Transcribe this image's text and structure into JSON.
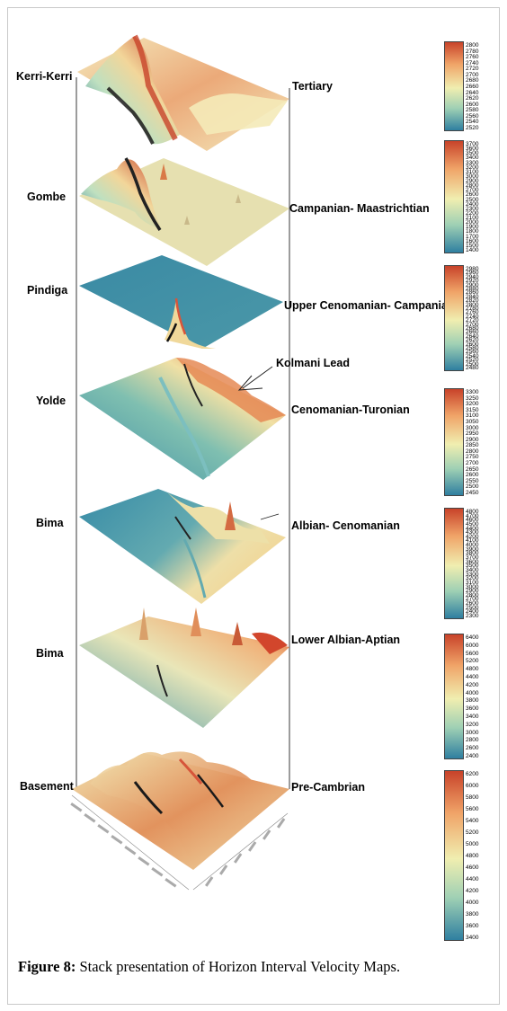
{
  "caption": {
    "label": "Figure 8:",
    "text": " Stack presentation of Horizon Interval Velocity Maps."
  },
  "annotation": {
    "text": "Kolmani Lead"
  },
  "colors": {
    "low": "#2f7fa0",
    "mid": "#f0eeb0",
    "high": "#c8432a"
  },
  "layers": [
    {
      "formation": "Kerri-Kerri",
      "age": "Tertiary",
      "scale": [
        "2800",
        "2780",
        "2760",
        "2740",
        "2720",
        "2700",
        "2680",
        "2660",
        "2640",
        "2620",
        "2600",
        "2580",
        "2560",
        "2540",
        "2520"
      ]
    },
    {
      "formation": "Gombe",
      "age": "Campanian- Maastrichtian",
      "scale": [
        "3700",
        "3600",
        "3500",
        "3400",
        "3300",
        "3200",
        "3100",
        "3000",
        "2900",
        "2800",
        "2700",
        "2600",
        "2500",
        "2400",
        "2300",
        "2200",
        "2100",
        "2000",
        "1900",
        "1800",
        "1700",
        "1600",
        "1500",
        "1400"
      ]
    },
    {
      "formation": "Pindiga",
      "age": "Upper Cenomanian- Campanian",
      "scale": [
        "2980",
        "2960",
        "2940",
        "2920",
        "2900",
        "2880",
        "2860",
        "2840",
        "2820",
        "2800",
        "2780",
        "2760",
        "2740",
        "2720",
        "2700",
        "2680",
        "2660",
        "2640",
        "2620",
        "2600",
        "2580",
        "2560",
        "2540",
        "2520",
        "2500",
        "2480"
      ]
    },
    {
      "formation": "Yolde",
      "age": "Cenomanian-Turonian",
      "scale": [
        "3300",
        "3250",
        "3200",
        "3150",
        "3100",
        "3050",
        "3000",
        "2950",
        "2900",
        "2850",
        "2800",
        "2750",
        "2700",
        "2650",
        "2600",
        "2550",
        "2500",
        "2450"
      ]
    },
    {
      "formation": "Bima",
      "age": "Albian- Cenomanian",
      "scale": [
        "4800",
        "4700",
        "4600",
        "4500",
        "4400",
        "4300",
        "4200",
        "4100",
        "4000",
        "3900",
        "3800",
        "3700",
        "3600",
        "3500",
        "3400",
        "3300",
        "3200",
        "3100",
        "3000",
        "2900",
        "2800",
        "2700",
        "2600",
        "2500",
        "2400",
        "2300"
      ]
    },
    {
      "formation": "Bima",
      "age": "Lower Albian-Aptian",
      "scale": [
        "6400",
        "6000",
        "5600",
        "5200",
        "4800",
        "4400",
        "4200",
        "4000",
        "3800",
        "3600",
        "3400",
        "3200",
        "3000",
        "2800",
        "2600",
        "2400"
      ]
    },
    {
      "formation": "Basement",
      "age": "Pre-Cambrian",
      "scale": [
        "6200",
        "6000",
        "5800",
        "5600",
        "5400",
        "5200",
        "5000",
        "4800",
        "4600",
        "4400",
        "4200",
        "4000",
        "3800",
        "3600",
        "3400"
      ]
    }
  ]
}
